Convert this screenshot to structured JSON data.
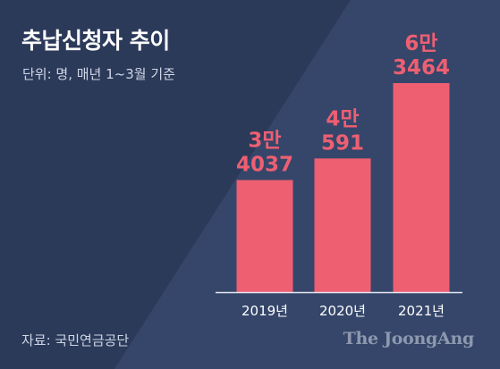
{
  "title": "추납신청자 추이",
  "subtitle": "단위: 명, 매년 1~3월 기준",
  "source": "자료: 국민연금공단",
  "brand": "The JoongAng",
  "colors": {
    "background": "#2c3a5a",
    "background_light": "#35466a",
    "bar": "#ee5f72",
    "label": "#ee5f72",
    "axis": "#e6e9f0",
    "tick_text": "#ffffff"
  },
  "chart_data": {
    "type": "bar",
    "categories": [
      "2019년",
      "2020년",
      "2021년"
    ],
    "values": [
      34037,
      40591,
      63464
    ],
    "data_labels": [
      [
        "3만",
        "4037"
      ],
      [
        "4만",
        "591"
      ],
      [
        "6만",
        "3464"
      ]
    ],
    "ylim": [
      0,
      63464
    ]
  }
}
